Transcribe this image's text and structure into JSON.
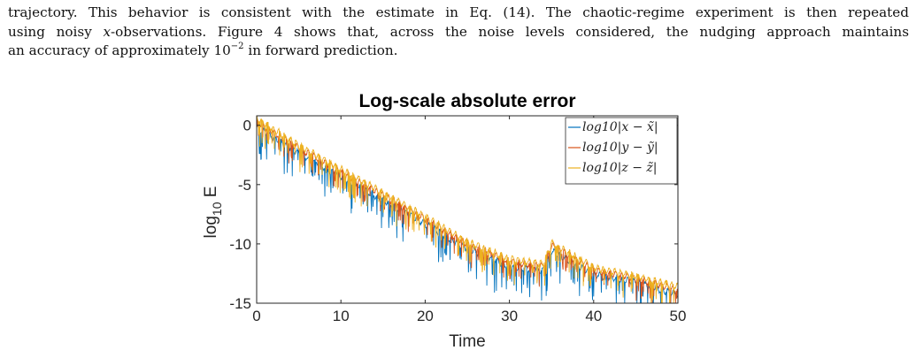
{
  "text": {
    "line1": "trajectory. This behavior is consistent with the estimate in Eq. (14). The chaotic-regime experiment is then repeated",
    "line2_pre": "using noisy ",
    "line2_var": "x",
    "line2_post": "-observations. Figure 4 shows that, across the noise levels considered, the nudging approach maintains",
    "line3_pre": "an accuracy of approximately 10",
    "line3_exp": "−2",
    "line3_post": " in forward prediction."
  },
  "colors": {
    "series_x": "#0072BD",
    "series_y": "#D95319",
    "series_z": "#EDB120",
    "axes": "#262626"
  },
  "chart_data": {
    "type": "line",
    "title": "Log-scale absolute error",
    "xlabel": "Time",
    "ylabel": "log10 E",
    "xlim": [
      0,
      50
    ],
    "ylim": [
      -15,
      0.8
    ],
    "x_ticks": [
      0,
      10,
      20,
      30,
      40,
      50
    ],
    "y_ticks": [
      -15,
      -10,
      -5,
      0
    ],
    "legend": "top-right",
    "grid": false,
    "series": [
      {
        "name": "log10|x − x̃|",
        "trend": [
          [
            0,
            -0.2
          ],
          [
            5,
            -2.3
          ],
          [
            10,
            -4.3
          ],
          [
            15,
            -6.3
          ],
          [
            20,
            -8.3
          ],
          [
            25,
            -10.4
          ],
          [
            30,
            -11.9
          ],
          [
            34,
            -12.3
          ],
          [
            35,
            -10.6
          ],
          [
            40,
            -12.6
          ],
          [
            45,
            -13.2
          ],
          [
            50,
            -14.3
          ]
        ],
        "spike_depth": 1.9
      },
      {
        "name": "log10|y − ỹ|",
        "trend": [
          [
            0,
            0.3
          ],
          [
            5,
            -1.9
          ],
          [
            10,
            -3.9
          ],
          [
            15,
            -5.9
          ],
          [
            20,
            -7.9
          ],
          [
            25,
            -10.0
          ],
          [
            30,
            -11.5
          ],
          [
            34,
            -11.9
          ],
          [
            35,
            -10.1
          ],
          [
            40,
            -12.2
          ],
          [
            45,
            -12.9
          ],
          [
            50,
            -13.9
          ]
        ],
        "spike_depth": 1.2
      },
      {
        "name": "log10|z − z̃|",
        "trend": [
          [
            0,
            0.6
          ],
          [
            5,
            -1.7
          ],
          [
            10,
            -3.7
          ],
          [
            15,
            -5.7
          ],
          [
            20,
            -7.7
          ],
          [
            25,
            -9.8
          ],
          [
            30,
            -11.3
          ],
          [
            34,
            -11.7
          ],
          [
            35,
            -9.9
          ],
          [
            40,
            -12.0
          ],
          [
            45,
            -12.7
          ],
          [
            50,
            -13.6
          ]
        ],
        "spike_depth": 1.5
      }
    ]
  }
}
